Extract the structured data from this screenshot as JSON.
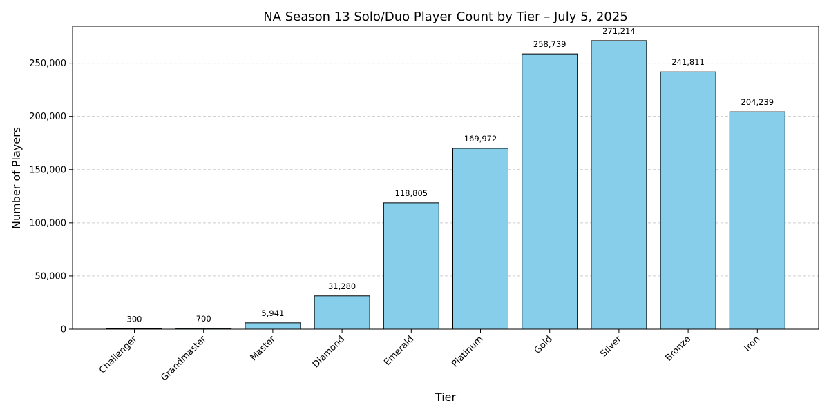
{
  "chart_data": {
    "type": "bar",
    "title": "NA Season 13 Solo/Duo Player Count by Tier – July 5, 2025",
    "xlabel": "Tier",
    "ylabel": "Number of Players",
    "categories": [
      "Challenger",
      "Grandmaster",
      "Master",
      "Diamond",
      "Emerald",
      "Platinum",
      "Gold",
      "Silver",
      "Bronze",
      "Iron"
    ],
    "values": [
      300,
      700,
      5941,
      31280,
      118805,
      169972,
      258739,
      271214,
      241811,
      204239
    ],
    "data_labels": [
      "300",
      "700",
      "5,941",
      "31,280",
      "118,805",
      "169,972",
      "258,739",
      "271,214",
      "241,811",
      "204,239"
    ],
    "yticks": [
      0,
      50000,
      100000,
      150000,
      200000,
      250000
    ],
    "ytick_labels": [
      "0",
      "50,000",
      "100,000",
      "150,000",
      "200,000",
      "250,000"
    ],
    "ylim": [
      0,
      284775
    ],
    "grid": "y-dashed",
    "bar_color": "#87ceeb",
    "edge_color": "#000000"
  }
}
